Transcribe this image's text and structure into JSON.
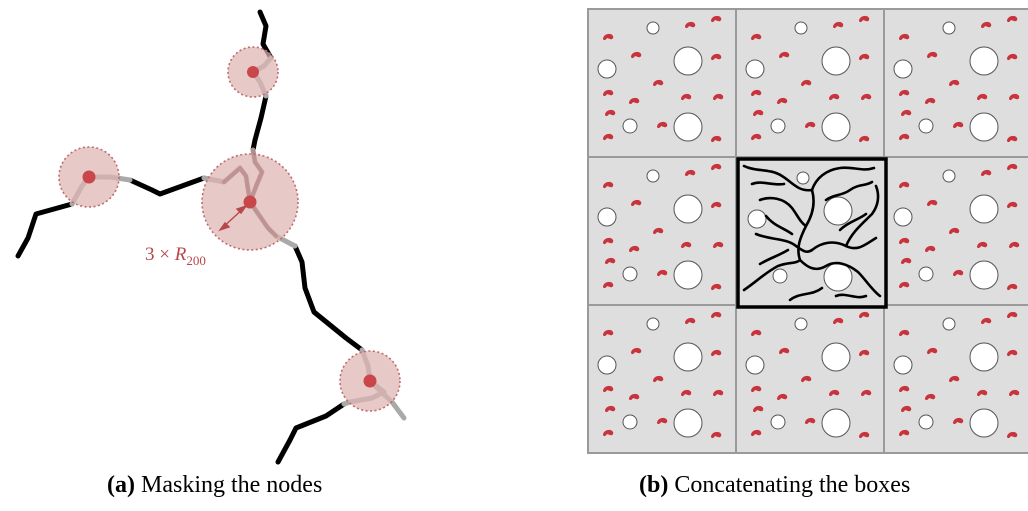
{
  "panel_a": {
    "caption_letter": "(a)",
    "caption_text": "Masking the nodes",
    "annotation": {
      "prefix": "3 × ",
      "variable": "R",
      "subscript": "200"
    }
  },
  "panel_b": {
    "caption_letter": "(b)",
    "caption_text": "Concatenating the boxes",
    "grid": {
      "rows": 3,
      "cols": 3,
      "highlighted_cell": [
        1,
        1
      ]
    }
  },
  "colors": {
    "filament": "#000000",
    "masked_filament": "#a9a9a9",
    "node": "#c9474a",
    "mask_fill": "#deb4b2",
    "mask_stroke": "#c06a6a",
    "box_fill": "#dedede",
    "box_stroke": "#9a9a9a",
    "void": "#ffffff",
    "galaxy": "#c8333c",
    "annotation": "#b5484b"
  }
}
